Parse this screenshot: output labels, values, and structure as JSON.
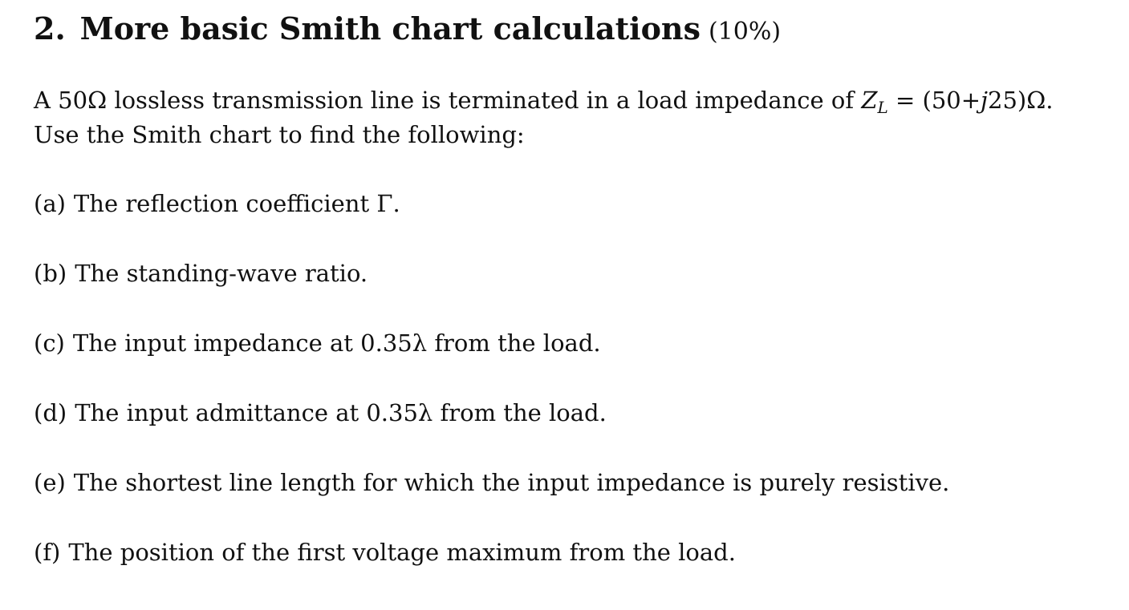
{
  "heading": {
    "number": "2.",
    "title": "More basic Smith chart calculations",
    "weight": "(10%)"
  },
  "intro": {
    "line1_prefix": "A 50Ω lossless transmission line is terminated in a load impedance of ",
    "load_symbol": "Z",
    "load_subscript": "L",
    "line1_equals": " = (50+",
    "imag_unit": "j",
    "line1_suffix": "25)Ω.",
    "line2": "Use the Smith chart to find the following:"
  },
  "items": [
    {
      "marker": "(a)",
      "text": "The reflection coefficient Γ."
    },
    {
      "marker": "(b)",
      "text": "The standing-wave ratio."
    },
    {
      "marker": "(c)",
      "text": "The input impedance at 0.35λ from the load."
    },
    {
      "marker": "(d)",
      "text": "The input admittance at 0.35λ from the load."
    },
    {
      "marker": "(e)",
      "text": "The shortest line length for which the input impedance is purely resistive."
    },
    {
      "marker": "(f)",
      "text": "The position of the first voltage maximum from the load."
    }
  ]
}
